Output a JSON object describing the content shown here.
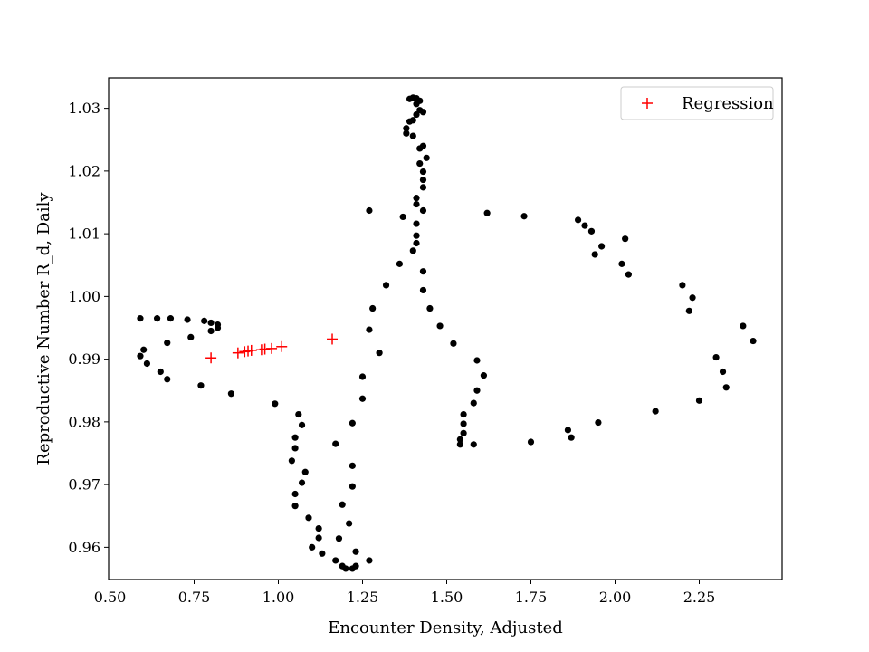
{
  "chart_data": {
    "type": "scatter",
    "title": "",
    "xlabel": "Encounter Density, Adjusted",
    "ylabel": "Reproductive Number R_d, Daily",
    "xlim": [
      0.5,
      2.5
    ],
    "ylim": [
      0.955,
      1.035
    ],
    "xticks": [
      0.5,
      0.75,
      1.0,
      1.25,
      1.5,
      1.75,
      2.0,
      2.25
    ],
    "xtick_labels": [
      "0.50",
      "0.75",
      "1.00",
      "1.25",
      "1.50",
      "1.75",
      "2.00",
      "2.25"
    ],
    "yticks": [
      0.96,
      0.97,
      0.98,
      0.99,
      1.0,
      1.01,
      1.02,
      1.03
    ],
    "ytick_labels": [
      "0.96",
      "0.97",
      "0.98",
      "0.99",
      "1.00",
      "1.01",
      "1.02",
      "1.03"
    ],
    "grid": false,
    "legend_position": "top-right",
    "series": [
      {
        "name": "",
        "marker": "dot",
        "color": "#000000",
        "points": [
          [
            0.59,
            0.9965
          ],
          [
            0.64,
            0.9965
          ],
          [
            0.68,
            0.9965
          ],
          [
            0.73,
            0.9963
          ],
          [
            0.78,
            0.9961
          ],
          [
            0.8,
            0.9958
          ],
          [
            0.82,
            0.9955
          ],
          [
            0.82,
            0.995
          ],
          [
            0.8,
            0.9945
          ],
          [
            0.74,
            0.9935
          ],
          [
            0.67,
            0.9926
          ],
          [
            0.6,
            0.9915
          ],
          [
            0.59,
            0.9905
          ],
          [
            0.61,
            0.9893
          ],
          [
            0.65,
            0.988
          ],
          [
            0.67,
            0.9868
          ],
          [
            0.77,
            0.9858
          ],
          [
            0.86,
            0.9845
          ],
          [
            0.99,
            0.9829
          ],
          [
            1.06,
            0.9812
          ],
          [
            1.07,
            0.9795
          ],
          [
            1.05,
            0.9775
          ],
          [
            1.05,
            0.9758
          ],
          [
            1.04,
            0.9738
          ],
          [
            1.08,
            0.972
          ],
          [
            1.07,
            0.9703
          ],
          [
            1.05,
            0.9685
          ],
          [
            1.05,
            0.9666
          ],
          [
            1.09,
            0.9647
          ],
          [
            1.12,
            0.963
          ],
          [
            1.12,
            0.9615
          ],
          [
            1.1,
            0.96
          ],
          [
            1.13,
            0.959
          ],
          [
            1.17,
            0.9579
          ],
          [
            1.19,
            0.957
          ],
          [
            1.2,
            0.9566
          ],
          [
            1.22,
            0.9566
          ],
          [
            1.23,
            0.957
          ],
          [
            1.27,
            0.9579
          ],
          [
            1.23,
            0.9593
          ],
          [
            1.18,
            0.9614
          ],
          [
            1.21,
            0.9638
          ],
          [
            1.19,
            0.9668
          ],
          [
            1.22,
            0.9697
          ],
          [
            1.22,
            0.973
          ],
          [
            1.17,
            0.9765
          ],
          [
            1.22,
            0.9798
          ],
          [
            1.25,
            0.9837
          ],
          [
            1.25,
            0.9872
          ],
          [
            1.3,
            0.991
          ],
          [
            1.27,
            0.9947
          ],
          [
            1.28,
            0.9981
          ],
          [
            1.32,
            1.0018
          ],
          [
            1.36,
            1.0052
          ],
          [
            1.27,
            1.0137
          ],
          [
            1.37,
            1.0127
          ],
          [
            1.4,
            1.0073
          ],
          [
            1.41,
            1.0085
          ],
          [
            1.41,
            1.0097
          ],
          [
            1.41,
            1.0116
          ],
          [
            1.43,
            1.0137
          ],
          [
            1.41,
            1.0147
          ],
          [
            1.41,
            1.0157
          ],
          [
            1.43,
            1.0174
          ],
          [
            1.43,
            1.0186
          ],
          [
            1.43,
            1.0199
          ],
          [
            1.44,
            1.0221
          ],
          [
            1.42,
            1.0212
          ],
          [
            1.43,
            1.024
          ],
          [
            1.42,
            1.0236
          ],
          [
            1.4,
            1.0256
          ],
          [
            1.38,
            1.026
          ],
          [
            1.38,
            1.0268
          ],
          [
            1.39,
            1.0279
          ],
          [
            1.4,
            1.0281
          ],
          [
            1.41,
            1.029
          ],
          [
            1.42,
            1.0297
          ],
          [
            1.43,
            1.0294
          ],
          [
            1.41,
            1.0307
          ],
          [
            1.42,
            1.0312
          ],
          [
            1.41,
            1.0316
          ],
          [
            1.39,
            1.0315
          ],
          [
            1.4,
            1.0317
          ],
          [
            1.43,
            1.004
          ],
          [
            1.43,
            1.001
          ],
          [
            1.45,
            0.9981
          ],
          [
            1.48,
            0.9953
          ],
          [
            1.52,
            0.9925
          ],
          [
            1.59,
            0.9898
          ],
          [
            1.61,
            0.9874
          ],
          [
            1.59,
            0.985
          ],
          [
            1.58,
            0.983
          ],
          [
            1.55,
            0.9812
          ],
          [
            1.55,
            0.9797
          ],
          [
            1.55,
            0.9782
          ],
          [
            1.54,
            0.9772
          ],
          [
            1.54,
            0.9764
          ],
          [
            1.58,
            0.9764
          ],
          [
            1.62,
            1.0133
          ],
          [
            1.73,
            1.0128
          ],
          [
            1.75,
            0.9768
          ],
          [
            1.86,
            0.9787
          ],
          [
            1.87,
            0.9775
          ],
          [
            1.95,
            0.9799
          ],
          [
            2.12,
            0.9817
          ],
          [
            2.25,
            0.9834
          ],
          [
            2.33,
            0.9855
          ],
          [
            2.32,
            0.988
          ],
          [
            2.3,
            0.9903
          ],
          [
            2.41,
            0.9929
          ],
          [
            2.38,
            0.9953
          ],
          [
            2.23,
            0.9998
          ],
          [
            2.22,
            0.9977
          ],
          [
            2.2,
            1.0018
          ],
          [
            2.04,
            1.0035
          ],
          [
            2.02,
            1.0052
          ],
          [
            1.94,
            1.0067
          ],
          [
            1.96,
            1.008
          ],
          [
            2.03,
            1.0092
          ],
          [
            1.93,
            1.0104
          ],
          [
            1.91,
            1.0113
          ],
          [
            1.89,
            1.0122
          ]
        ]
      },
      {
        "name": "Regression",
        "marker": "plus",
        "color": "#ff0000",
        "points": [
          [
            0.8,
            0.9902
          ],
          [
            0.88,
            0.991
          ],
          [
            0.9,
            0.9912
          ],
          [
            0.91,
            0.9913
          ],
          [
            0.92,
            0.9914
          ],
          [
            0.95,
            0.9915
          ],
          [
            0.96,
            0.9916
          ],
          [
            0.98,
            0.9917
          ],
          [
            1.01,
            0.992
          ],
          [
            1.16,
            0.9932
          ]
        ]
      }
    ]
  }
}
